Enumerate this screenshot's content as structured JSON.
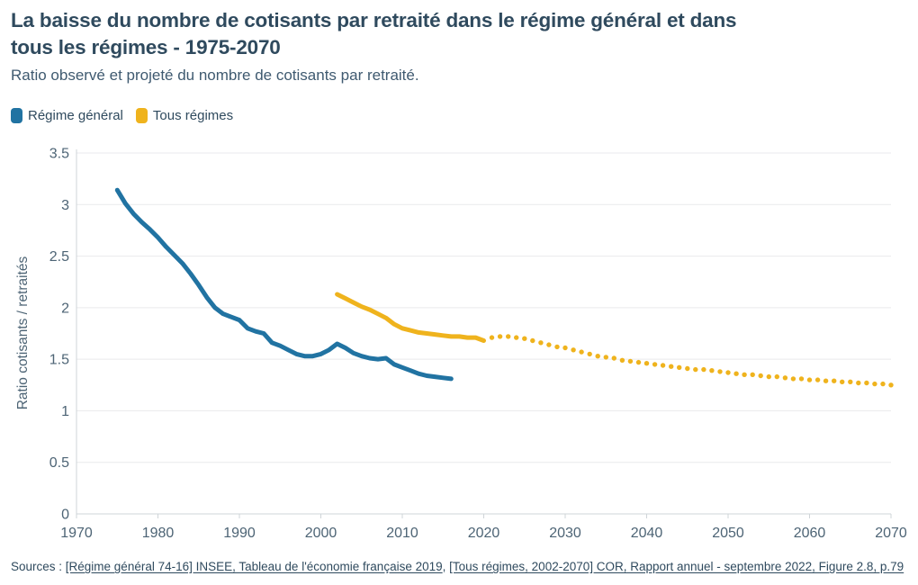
{
  "header": {
    "title_line1": "La baisse du nombre de cotisants par retraité dans le régime général et dans",
    "title_line2": "tous les régimes - 1975-2070",
    "subtitle": "Ratio observé et projeté du nombre de cotisants par retraité."
  },
  "legend": {
    "items": [
      {
        "label": "Régime général",
        "color": "#2173a2"
      },
      {
        "label": "Tous régimes",
        "color": "#efb31d"
      }
    ]
  },
  "colors": {
    "title_text": "#2f4a5e",
    "subtitle_text": "#3f5a70",
    "axis_text": "#4d6475",
    "grid_line": "#e9eaec",
    "axis_line": "#cfd4d8",
    "regime_general": "#2173a2",
    "tous_regimes": "#efb31d",
    "background": "#ffffff"
  },
  "chart_data": {
    "type": "line",
    "title": "La baisse du nombre de cotisants par retraité dans le régime général et dans tous les régimes - 1975-2070",
    "subtitle": "Ratio observé et projeté du nombre de cotisants par retraité.",
    "xlabel": "",
    "ylabel": "Ratio cotisants / retraités",
    "xlim": [
      1970,
      2070
    ],
    "ylim": [
      0,
      3.5
    ],
    "x_ticks": [
      1970,
      1980,
      1990,
      2000,
      2010,
      2020,
      2030,
      2040,
      2050,
      2060,
      2070
    ],
    "y_ticks": [
      0,
      0.5,
      1,
      1.5,
      2,
      2.5,
      3,
      3.5
    ],
    "grid": true,
    "legend_position": "top-left",
    "series": [
      {
        "name": "Régime général",
        "style": "solid",
        "color": "#2173a2",
        "x": [
          1975,
          1976,
          1977,
          1978,
          1979,
          1980,
          1981,
          1982,
          1983,
          1984,
          1985,
          1986,
          1987,
          1988,
          1989,
          1990,
          1991,
          1992,
          1993,
          1994,
          1995,
          1996,
          1997,
          1998,
          1999,
          2000,
          2001,
          2002,
          2003,
          2004,
          2005,
          2006,
          2007,
          2008,
          2009,
          2010,
          2011,
          2012,
          2013,
          2014,
          2015,
          2016
        ],
        "values": [
          3.14,
          3.01,
          2.91,
          2.83,
          2.76,
          2.68,
          2.59,
          2.51,
          2.43,
          2.33,
          2.22,
          2.1,
          2.0,
          1.94,
          1.91,
          1.88,
          1.8,
          1.77,
          1.75,
          1.66,
          1.63,
          1.59,
          1.55,
          1.53,
          1.53,
          1.55,
          1.59,
          1.65,
          1.61,
          1.56,
          1.53,
          1.51,
          1.5,
          1.51,
          1.45,
          1.42,
          1.39,
          1.36,
          1.34,
          1.33,
          1.32,
          1.31
        ]
      },
      {
        "name": "Tous régimes (observé)",
        "style": "solid",
        "color": "#efb31d",
        "x": [
          2002,
          2003,
          2004,
          2005,
          2006,
          2007,
          2008,
          2009,
          2010,
          2011,
          2012,
          2013,
          2014,
          2015,
          2016,
          2017,
          2018,
          2019,
          2020
        ],
        "values": [
          2.13,
          2.09,
          2.05,
          2.01,
          1.98,
          1.94,
          1.9,
          1.84,
          1.8,
          1.78,
          1.76,
          1.75,
          1.74,
          1.73,
          1.72,
          1.72,
          1.71,
          1.71,
          1.68
        ]
      },
      {
        "name": "Tous régimes (projeté)",
        "style": "dotted",
        "color": "#efb31d",
        "x": [
          2021,
          2022,
          2023,
          2024,
          2025,
          2026,
          2027,
          2028,
          2029,
          2030,
          2031,
          2032,
          2033,
          2034,
          2035,
          2036,
          2037,
          2038,
          2039,
          2040,
          2041,
          2042,
          2043,
          2044,
          2045,
          2046,
          2047,
          2048,
          2049,
          2050,
          2051,
          2052,
          2053,
          2054,
          2055,
          2056,
          2057,
          2058,
          2059,
          2060,
          2061,
          2062,
          2063,
          2064,
          2065,
          2066,
          2067,
          2068,
          2069,
          2070
        ],
        "values": [
          1.71,
          1.72,
          1.72,
          1.71,
          1.7,
          1.68,
          1.66,
          1.64,
          1.62,
          1.61,
          1.59,
          1.57,
          1.55,
          1.53,
          1.52,
          1.51,
          1.49,
          1.48,
          1.47,
          1.46,
          1.45,
          1.44,
          1.43,
          1.42,
          1.41,
          1.4,
          1.4,
          1.39,
          1.38,
          1.37,
          1.36,
          1.35,
          1.35,
          1.34,
          1.33,
          1.33,
          1.32,
          1.31,
          1.31,
          1.3,
          1.3,
          1.29,
          1.29,
          1.28,
          1.28,
          1.27,
          1.27,
          1.26,
          1.26,
          1.25
        ]
      }
    ]
  },
  "footer": {
    "prefix": "Sources : ",
    "links": [
      "[Régime général 74-16] INSEE, Tableau de l'économie française 2019",
      "[Tous régimes, 2002-2070] COR, Rapport annuel - septembre 2022, Figure 2.8, p.79"
    ],
    "separator": ", "
  }
}
